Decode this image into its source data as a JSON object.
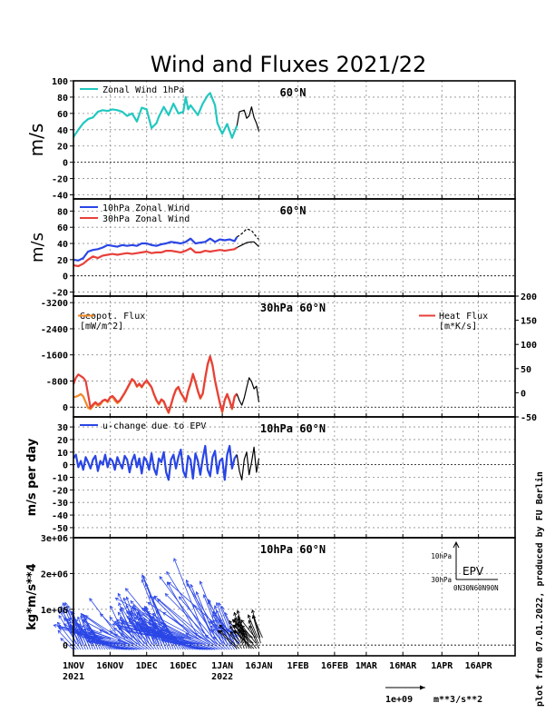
{
  "title": "Wind and Fluxes 2021/22",
  "credit": "plot from 07.01.2022, produced by FU Berlin",
  "x_axis": {
    "tick_labels": [
      "1NOV",
      "16NOV",
      "1DEC",
      "16DEC",
      "1JAN",
      "16JAN",
      "1FEB",
      "16FEB",
      "1MAR",
      "16MAR",
      "1APR",
      "16APR"
    ],
    "tick_days": [
      0,
      15,
      30,
      45,
      61,
      76,
      92,
      107,
      120,
      135,
      151,
      166
    ],
    "year_labels": [
      {
        "text": "2021",
        "day": 0
      },
      {
        "text": "2022",
        "day": 61
      }
    ],
    "range_days": [
      0,
      181
    ]
  },
  "vector_key": {
    "label": "1e+09",
    "unit": "m**3/s**2"
  },
  "colors": {
    "cyan": "#22c8c0",
    "blue": "#2a46e6",
    "red": "#e8403a",
    "orange": "#f08a2a",
    "black": "#000000"
  },
  "chart_data": [
    {
      "type": "line",
      "panel": 1,
      "ylabel": "m/s",
      "annotation": "60°N",
      "ylim": [
        -45,
        100
      ],
      "yticks": [
        -40,
        -20,
        0,
        20,
        40,
        60,
        80,
        100
      ],
      "ytick_labels": [
        "-40",
        "-20",
        "0",
        "20",
        "40",
        "60",
        "80",
        "100"
      ],
      "series": [
        {
          "name": "Zonal Wind 1hPa",
          "color": "#22c8c0",
          "x": [
            0,
            2,
            4,
            6,
            8,
            10,
            12,
            14,
            16,
            18,
            20,
            22,
            24,
            26,
            28,
            30,
            32,
            34,
            35,
            37,
            39,
            41,
            43,
            45,
            46,
            47,
            48,
            50,
            51,
            53,
            55,
            56,
            58,
            59,
            61,
            63,
            65,
            67
          ],
          "y": [
            31,
            40,
            48,
            53,
            55,
            62,
            64,
            63,
            65,
            64,
            62,
            57,
            60,
            50,
            67,
            65,
            42,
            48,
            56,
            68,
            58,
            72,
            60,
            62,
            80,
            65,
            70,
            62,
            58,
            72,
            82,
            85,
            70,
            48,
            35,
            47,
            30,
            45
          ]
        },
        {
          "name": "",
          "color": "#000000",
          "x": [
            67,
            68,
            70,
            71,
            72,
            73,
            74,
            75,
            76
          ],
          "y": [
            45,
            62,
            64,
            54,
            57,
            68,
            55,
            48,
            38
          ]
        }
      ]
    },
    {
      "type": "line",
      "panel": 2,
      "ylabel": "m/s",
      "annotation": "60°N",
      "ylim": [
        -25,
        95
      ],
      "yticks": [
        -20,
        0,
        20,
        40,
        60,
        80
      ],
      "ytick_labels": [
        "-20",
        "0",
        "20",
        "40",
        "60",
        "80"
      ],
      "series": [
        {
          "name": "10hPa Zonal Wind",
          "color": "#2a46e6",
          "x": [
            0,
            2,
            4,
            6,
            8,
            10,
            12,
            14,
            16,
            18,
            20,
            22,
            24,
            26,
            28,
            30,
            32,
            34,
            36,
            38,
            40,
            42,
            44,
            46,
            48,
            50,
            52,
            54,
            56,
            58,
            60,
            62,
            64,
            66,
            67
          ],
          "y": [
            20,
            19,
            22,
            30,
            32,
            33,
            35,
            38,
            37,
            36,
            38,
            37,
            38,
            37,
            40,
            40,
            38,
            37,
            39,
            40,
            42,
            41,
            40,
            42,
            46,
            40,
            41,
            42,
            46,
            42,
            45,
            44,
            45,
            43,
            48
          ]
        },
        {
          "name": "",
          "color": "#000000",
          "dashed": true,
          "x": [
            67,
            69,
            71,
            73,
            74,
            75,
            76
          ],
          "y": [
            48,
            52,
            58,
            56,
            52,
            48,
            45
          ]
        },
        {
          "name": "30hPa Zonal Wind",
          "color": "#e8403a",
          "x": [
            0,
            2,
            4,
            6,
            8,
            10,
            12,
            14,
            16,
            18,
            20,
            22,
            24,
            26,
            28,
            30,
            32,
            34,
            36,
            38,
            40,
            42,
            44,
            46,
            48,
            50,
            52,
            54,
            56,
            58,
            60,
            62,
            64,
            66,
            67
          ],
          "y": [
            13,
            12,
            15,
            20,
            24,
            22,
            25,
            26,
            27,
            26,
            27,
            28,
            27,
            28,
            29,
            30,
            28,
            29,
            29,
            31,
            31,
            30,
            29,
            31,
            34,
            29,
            29,
            31,
            30,
            31,
            32,
            31,
            32,
            33,
            35
          ]
        },
        {
          "name": "",
          "color": "#000000",
          "x": [
            67,
            69,
            71,
            73,
            74,
            75,
            76
          ],
          "y": [
            35,
            38,
            41,
            42,
            42,
            39,
            36
          ]
        }
      ]
    },
    {
      "type": "line",
      "panel": 3,
      "annotation": "30hPa 60°N",
      "ylim": [
        -300,
        3400
      ],
      "yticks": [
        0,
        800,
        1600,
        2400,
        3200
      ],
      "ytick_labels": [
        "0",
        "-800",
        "-1600",
        "-2400",
        "-3200"
      ],
      "y2lim": [
        -50,
        200
      ],
      "y2ticks": [
        -50,
        0,
        50,
        100,
        150,
        200
      ],
      "y2tick_labels": [
        "-50",
        "0",
        "50",
        "100",
        "150",
        "200"
      ],
      "legend_left": [
        "Geopot. Flux",
        "[mW/m^2]"
      ],
      "legend_right": [
        "Heat Flux",
        "[m*K/s]"
      ],
      "series": [
        {
          "name": "Geopot. Flux",
          "color": "#f08a2a",
          "x": [
            0,
            1,
            2,
            3,
            4,
            5,
            6,
            7,
            8,
            9,
            10,
            11,
            12,
            13,
            14,
            15,
            16,
            17,
            18,
            19,
            20,
            21,
            22,
            23,
            24,
            25,
            26,
            27,
            28,
            29,
            30,
            31,
            32,
            33,
            34,
            35,
            36,
            37,
            38,
            39,
            40,
            41,
            42,
            43,
            44,
            45,
            46,
            47,
            48,
            49,
            50,
            51,
            52,
            53,
            54,
            55,
            56,
            57,
            58,
            59,
            60,
            61,
            62,
            63,
            64,
            65,
            66,
            67
          ],
          "y": [
            300,
            320,
            350,
            400,
            330,
            150,
            -20,
            -60,
            30,
            120,
            40,
            80,
            180,
            220,
            150,
            280,
            320,
            200,
            120,
            180,
            300,
            420,
            560,
            700,
            850,
            780,
            620,
            700,
            600,
            720,
            800,
            700,
            600,
            380,
            200,
            80,
            220,
            160,
            -20,
            -180,
            60,
            320,
            520,
            600,
            420,
            300,
            160,
            480,
            700,
            1000,
            760,
            480,
            260,
            400,
            880,
            1300,
            1540,
            1260,
            800,
            460,
            120,
            -160,
            200,
            380,
            180,
            -60,
            300,
            400
          ]
        },
        {
          "name": "Heat Flux",
          "color": "#e8403a",
          "x": [
            0,
            1,
            2,
            3,
            4,
            5,
            6,
            7,
            8,
            9,
            10,
            11,
            12,
            13,
            14,
            15,
            16,
            17,
            18,
            19,
            20,
            21,
            22,
            23,
            24,
            25,
            26,
            27,
            28,
            29,
            30,
            31,
            32,
            33,
            34,
            35,
            36,
            37,
            38,
            39,
            40,
            41,
            42,
            43,
            44,
            45,
            46,
            47,
            48,
            49,
            50,
            51,
            52,
            53,
            54,
            55,
            56,
            57,
            58,
            59,
            60,
            61,
            62,
            63,
            64,
            65,
            66,
            67
          ],
          "y": [
            700,
            900,
            1000,
            950,
            900,
            800,
            400,
            -20,
            80,
            150,
            80,
            120,
            200,
            230,
            180,
            300,
            340,
            260,
            160,
            200,
            320,
            440,
            580,
            720,
            860,
            790,
            640,
            720,
            620,
            740,
            820,
            720,
            610,
            400,
            220,
            100,
            240,
            180,
            0,
            -160,
            80,
            340,
            540,
            620,
            440,
            320,
            180,
            500,
            720,
            1020,
            780,
            500,
            280,
            420,
            900,
            1320,
            1560,
            1280,
            820,
            480,
            140,
            -140,
            220,
            400,
            200,
            -40,
            320,
            420
          ]
        },
        {
          "name": "",
          "color": "#000000",
          "x": [
            67,
            68,
            69,
            70,
            71,
            72,
            73,
            74,
            75,
            76
          ],
          "y": [
            400,
            200,
            60,
            280,
            600,
            900,
            780,
            560,
            640,
            150
          ]
        }
      ]
    },
    {
      "type": "line",
      "panel": 4,
      "ylabel": "m/s per day",
      "annotation": "10hPa 60°N",
      "ylim": [
        -58,
        38
      ],
      "yticks": [
        -50,
        -40,
        -30,
        -20,
        -10,
        0,
        10,
        20,
        30
      ],
      "ytick_labels": [
        "-50",
        "-40",
        "-30",
        "-20",
        "-10",
        "0",
        "10",
        "20",
        "30"
      ],
      "series": [
        {
          "name": "u-change due to EPV",
          "color": "#2a46e6",
          "x": [
            0,
            1,
            2,
            3,
            4,
            5,
            6,
            7,
            8,
            9,
            10,
            11,
            12,
            13,
            14,
            15,
            16,
            17,
            18,
            19,
            20,
            21,
            22,
            23,
            24,
            25,
            26,
            27,
            28,
            29,
            30,
            31,
            32,
            33,
            34,
            35,
            36,
            37,
            38,
            39,
            40,
            41,
            42,
            43,
            44,
            45,
            46,
            47,
            48,
            49,
            50,
            51,
            52,
            53,
            54,
            55,
            56,
            57,
            58,
            59,
            60,
            61,
            62,
            63,
            64,
            65,
            66,
            67
          ],
          "y": [
            5,
            8,
            -2,
            3,
            -4,
            6,
            2,
            -3,
            4,
            7,
            -5,
            3,
            0,
            8,
            -2,
            5,
            3,
            -4,
            6,
            1,
            -3,
            7,
            4,
            -6,
            3,
            8,
            -2,
            5,
            -7,
            6,
            3,
            -4,
            9,
            -3,
            -8,
            5,
            2,
            10,
            -6,
            -12,
            4,
            8,
            -3,
            6,
            12,
            -5,
            -10,
            7,
            4,
            -11,
            9,
            3,
            -8,
            5,
            15,
            -4,
            -9,
            6,
            11,
            -7,
            3,
            5,
            -12,
            8,
            15,
            -3,
            5,
            8
          ]
        },
        {
          "name": "",
          "color": "#000000",
          "x": [
            67,
            68,
            69,
            70,
            71,
            72,
            73,
            74,
            75,
            76
          ],
          "y": [
            8,
            -5,
            -12,
            4,
            10,
            -8,
            2,
            14,
            -6,
            5
          ]
        }
      ]
    },
    {
      "type": "vector",
      "panel": 5,
      "ylabel": "kg*m/s**4",
      "annotation": "10hPa 60°N",
      "ylim": [
        -300000,
        3000000
      ],
      "yticks": [
        0,
        1000000,
        2000000,
        3000000
      ],
      "ytick_labels": [
        "0",
        "1e+06",
        "2e+06",
        "3e+06"
      ],
      "inset": {
        "title": "EPV",
        "levels": [
          "10hPa",
          "30hPa"
        ],
        "lat_ticks": [
          "0N",
          "30N",
          "60N",
          "90N"
        ]
      }
    }
  ]
}
